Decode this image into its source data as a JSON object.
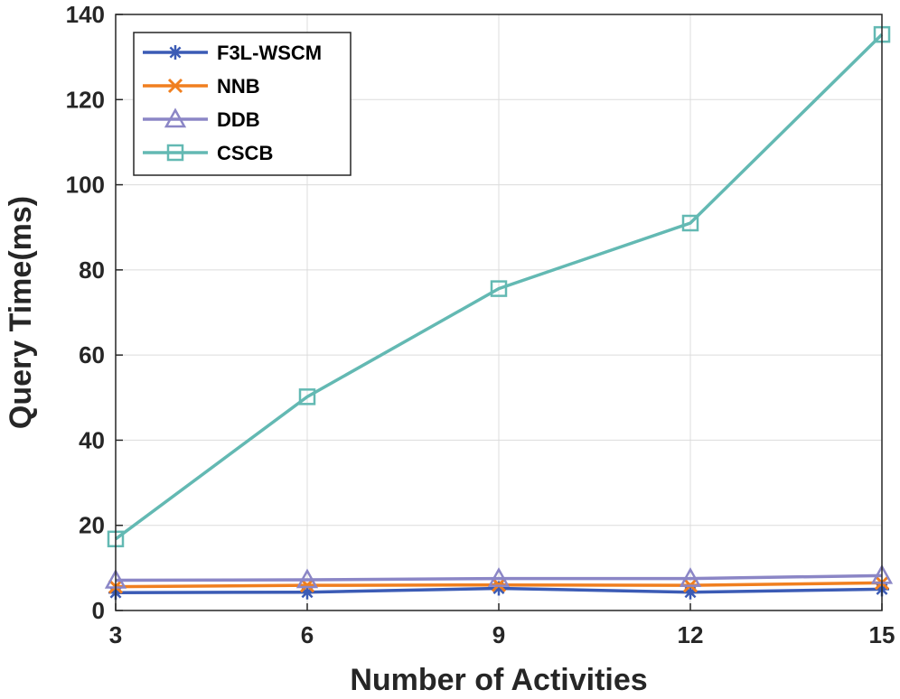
{
  "chart_data": {
    "type": "line",
    "title": "",
    "xlabel": "Number of Activities",
    "ylabel": "Query Time(ms)",
    "x": [
      3,
      6,
      9,
      12,
      15
    ],
    "xticks": [
      3,
      6,
      9,
      12,
      15
    ],
    "yticks": [
      0,
      20,
      40,
      60,
      80,
      100,
      120,
      140
    ],
    "xlim": [
      3,
      15
    ],
    "ylim": [
      0,
      140
    ],
    "grid": true,
    "legend_position": "top-left",
    "series": [
      {
        "name": "F3L-WSCM",
        "color": "#3b5bb5",
        "marker": "asterisk",
        "values": [
          4.2,
          4.3,
          5.2,
          4.3,
          5.0
        ]
      },
      {
        "name": "NNB",
        "color": "#f07f1f",
        "marker": "x",
        "values": [
          5.6,
          5.9,
          6.0,
          5.9,
          6.5
        ]
      },
      {
        "name": "DDB",
        "color": "#8b86c6",
        "marker": "triangle",
        "values": [
          7.1,
          7.2,
          7.5,
          7.5,
          8.2
        ]
      },
      {
        "name": "CSCB",
        "color": "#63b9b3",
        "marker": "square",
        "values": [
          16.8,
          50.2,
          75.6,
          91.0,
          135.3
        ]
      }
    ]
  }
}
